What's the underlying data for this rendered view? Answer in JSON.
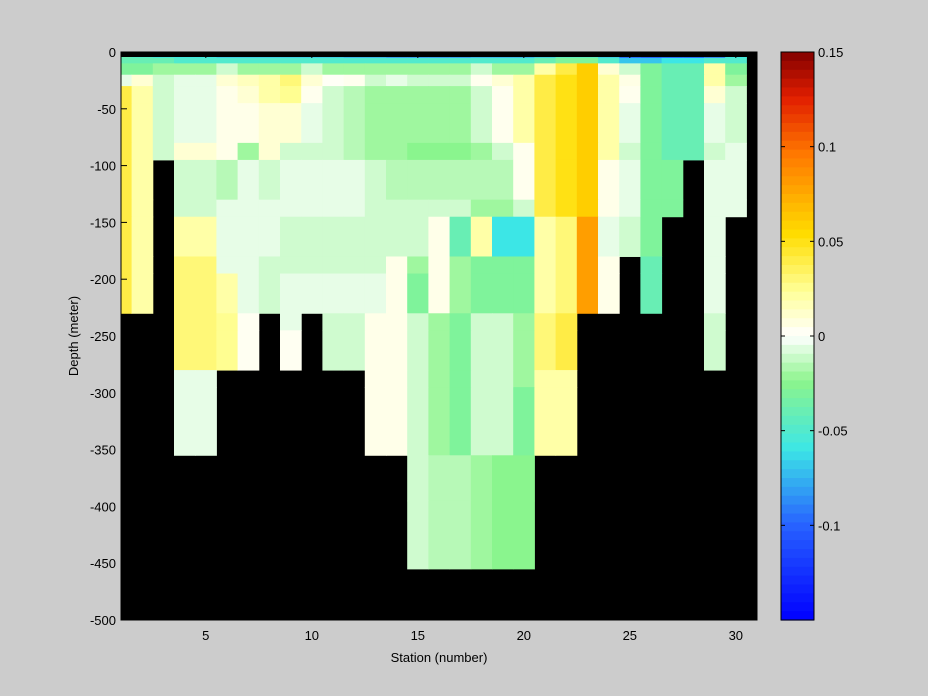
{
  "chart_data": {
    "type": "heatmap",
    "title": "",
    "xlabel": "Station (number)",
    "ylabel": "Depth (meter)",
    "xlim": [
      1,
      31
    ],
    "ylim": [
      -500,
      0
    ],
    "x_ticks": [
      5,
      10,
      15,
      20,
      25,
      30
    ],
    "y_ticks": [
      0,
      -50,
      -100,
      -150,
      -200,
      -250,
      -300,
      -350,
      -400,
      -450,
      -500
    ],
    "depth_bins": [
      -2.5,
      -7.5,
      -15,
      -25,
      -37.5,
      -62.5,
      -87.5,
      -112.5,
      -137.5,
      -162.5,
      -187.5,
      -212.5,
      -237.5,
      -262.5,
      -287.5,
      -325,
      -375,
      -425,
      -475
    ],
    "stations": [
      1,
      2,
      3,
      4,
      5,
      6,
      7,
      8,
      9,
      10,
      11,
      12,
      13,
      14,
      15,
      16,
      17,
      18,
      19,
      20,
      21,
      22,
      23,
      24,
      25,
      26,
      27,
      28,
      29,
      30
    ],
    "bottom_depth": [
      -200,
      -200,
      -100,
      -100,
      -300,
      -300,
      -250,
      -250,
      -200,
      -250,
      -200,
      -250,
      -250,
      -300,
      -300,
      -400,
      -400,
      -400,
      -400,
      -400,
      -400,
      -300,
      -300,
      -200,
      -150,
      -200,
      -125,
      -100,
      -250,
      -150
    ],
    "values": [
      [
        -0.04,
        -0.05,
        -0.06,
        -0.06,
        -0.06,
        -0.07,
        -0.07,
        -0.07,
        -0.07,
        -0.07,
        -0.07,
        -0.08,
        -0.08,
        -0.09,
        -0.09,
        -0.09,
        -0.09,
        -0.08,
        -0.08,
        -0.08,
        -0.07,
        -0.05,
        -0.05,
        -0.07,
        -0.11,
        -0.12,
        -0.12,
        -0.12,
        -0.1,
        -0.06
      ],
      [
        -0.04,
        -0.04,
        -0.04,
        -0.05,
        -0.05,
        -0.05,
        -0.05,
        -0.05,
        -0.05,
        -0.05,
        -0.05,
        -0.05,
        -0.05,
        -0.05,
        -0.05,
        -0.05,
        -0.05,
        -0.05,
        -0.05,
        -0.05,
        -0.04,
        -0.03,
        -0.03,
        -0.05,
        -0.07,
        -0.07,
        -0.06,
        -0.06,
        -0.05,
        -0.05
      ],
      [
        -0.03,
        -0.03,
        -0.02,
        -0.02,
        -0.02,
        -0.01,
        -0.02,
        -0.02,
        -0.02,
        -0.01,
        -0.02,
        -0.02,
        -0.02,
        -0.02,
        -0.02,
        -0.02,
        -0.02,
        -0.01,
        -0.02,
        -0.02,
        0.02,
        0.04,
        0.06,
        0.01,
        -0.01,
        -0.03,
        -0.04,
        -0.04,
        0.02,
        -0.03
      ],
      [
        -0.005,
        0.01,
        -0.01,
        -0.005,
        -0.005,
        0.01,
        0.015,
        0.02,
        0.03,
        0.01,
        0.002,
        0.004,
        -0.01,
        -0.005,
        -0.01,
        -0.01,
        -0.01,
        0.004,
        0.01,
        0.02,
        0.04,
        0.05,
        0.06,
        0.02,
        0.006,
        -0.03,
        -0.04,
        -0.04,
        0.02,
        -0.02
      ],
      [
        0.04,
        0.02,
        -0.01,
        -0.005,
        -0.005,
        0.005,
        0.01,
        0.02,
        0.025,
        0.004,
        -0.01,
        -0.015,
        -0.02,
        -0.02,
        -0.02,
        -0.02,
        -0.02,
        -0.01,
        0.004,
        0.02,
        0.04,
        0.05,
        0.06,
        0.02,
        0.004,
        -0.03,
        -0.04,
        -0.04,
        0.01,
        -0.01
      ],
      [
        0.04,
        0.02,
        -0.01,
        -0.005,
        -0.005,
        0.005,
        0.005,
        0.01,
        0.01,
        -0.005,
        -0.01,
        -0.015,
        -0.02,
        -0.02,
        -0.02,
        -0.02,
        -0.02,
        -0.01,
        0.004,
        0.02,
        0.04,
        0.05,
        0.06,
        0.02,
        -0.005,
        -0.03,
        -0.04,
        -0.04,
        -0.005,
        -0.01
      ],
      [
        0.04,
        0.02,
        -0.01,
        0.01,
        0.01,
        0.005,
        -0.02,
        0.01,
        -0.01,
        -0.01,
        -0.01,
        -0.015,
        -0.02,
        -0.02,
        -0.025,
        -0.025,
        -0.025,
        -0.02,
        -0.01,
        0.004,
        0.04,
        0.05,
        0.06,
        0.02,
        -0.01,
        -0.03,
        -0.04,
        -0.04,
        -0.01,
        -0.005
      ],
      [
        0.04,
        0.02,
        null,
        -0.01,
        -0.01,
        -0.015,
        -0.005,
        -0.01,
        -0.005,
        -0.005,
        -0.005,
        -0.005,
        -0.01,
        -0.015,
        -0.015,
        -0.015,
        -0.015,
        -0.015,
        -0.015,
        0.004,
        0.04,
        0.05,
        0.06,
        0.005,
        -0.005,
        -0.03,
        -0.03,
        null,
        -0.005,
        -0.005
      ],
      [
        0.04,
        0.02,
        null,
        -0.01,
        -0.01,
        -0.005,
        -0.005,
        -0.005,
        -0.005,
        -0.005,
        -0.005,
        -0.005,
        -0.01,
        -0.01,
        -0.01,
        -0.01,
        -0.01,
        -0.02,
        -0.02,
        -0.01,
        0.04,
        0.05,
        0.06,
        0.005,
        -0.005,
        -0.03,
        -0.03,
        null,
        -0.005,
        -0.005
      ],
      [
        0.04,
        0.02,
        null,
        0.02,
        0.02,
        -0.005,
        -0.005,
        -0.005,
        -0.01,
        -0.01,
        -0.01,
        -0.01,
        -0.01,
        -0.01,
        -0.01,
        0.005,
        -0.04,
        0.02,
        -0.06,
        -0.06,
        0.02,
        0.03,
        0.08,
        -0.005,
        -0.01,
        -0.03,
        null,
        null,
        -0.005,
        null
      ],
      [
        0.04,
        0.02,
        null,
        0.03,
        0.03,
        -0.005,
        -0.005,
        -0.01,
        -0.01,
        -0.01,
        -0.01,
        -0.01,
        -0.01,
        0.005,
        -0.02,
        0.005,
        -0.02,
        -0.03,
        -0.03,
        -0.03,
        0.02,
        0.03,
        0.08,
        0.005,
        null,
        -0.04,
        null,
        null,
        -0.005,
        null
      ],
      [
        0.04,
        0.02,
        null,
        0.03,
        0.03,
        0.02,
        -0.005,
        -0.01,
        -0.005,
        -0.005,
        -0.005,
        -0.005,
        -0.005,
        0.005,
        -0.03,
        0.005,
        -0.02,
        -0.03,
        -0.03,
        -0.03,
        0.02,
        0.03,
        0.08,
        0.005,
        null,
        -0.04,
        null,
        null,
        -0.005,
        null
      ],
      [
        null,
        null,
        null,
        0.03,
        0.03,
        0.025,
        0.003,
        null,
        -0.005,
        null,
        -0.01,
        -0.01,
        0.005,
        0.005,
        -0.01,
        -0.02,
        -0.03,
        -0.01,
        -0.01,
        -0.02,
        0.03,
        0.04,
        null,
        null,
        null,
        null,
        null,
        null,
        -0.01,
        null
      ],
      [
        null,
        null,
        null,
        0.03,
        0.03,
        0.025,
        0.003,
        null,
        0.003,
        null,
        -0.01,
        -0.01,
        0.005,
        0.005,
        -0.01,
        -0.02,
        -0.03,
        -0.01,
        -0.01,
        -0.02,
        0.03,
        0.04,
        null,
        null,
        null,
        null,
        null,
        null,
        -0.01,
        null
      ],
      [
        null,
        null,
        null,
        -0.005,
        -0.005,
        null,
        null,
        null,
        null,
        null,
        null,
        null,
        0.005,
        0.005,
        -0.01,
        -0.02,
        -0.03,
        -0.01,
        -0.01,
        -0.02,
        0.02,
        0.02,
        null,
        null,
        null,
        null,
        null,
        null,
        null,
        null
      ],
      [
        null,
        null,
        null,
        -0.005,
        -0.005,
        null,
        null,
        null,
        null,
        null,
        null,
        null,
        0.005,
        0.005,
        -0.01,
        -0.02,
        -0.03,
        -0.01,
        -0.01,
        -0.03,
        0.02,
        0.02,
        null,
        null,
        null,
        null,
        null,
        null,
        null,
        null
      ],
      [
        null,
        null,
        null,
        null,
        null,
        null,
        null,
        null,
        null,
        null,
        null,
        null,
        null,
        null,
        -0.01,
        -0.015,
        -0.015,
        -0.02,
        -0.025,
        -0.025,
        null,
        null,
        null,
        null,
        null,
        null,
        null,
        null,
        null,
        null
      ],
      [
        null,
        null,
        null,
        null,
        null,
        null,
        null,
        null,
        null,
        null,
        null,
        null,
        null,
        null,
        -0.01,
        -0.015,
        -0.015,
        -0.02,
        -0.025,
        -0.025,
        null,
        null,
        null,
        null,
        null,
        null,
        null,
        null,
        null,
        null
      ],
      [
        null,
        null,
        null,
        null,
        null,
        null,
        null,
        null,
        null,
        null,
        null,
        null,
        null,
        null,
        null,
        null,
        null,
        null,
        null,
        null,
        null,
        null,
        null,
        null,
        null,
        null,
        null,
        null,
        null,
        null
      ]
    ],
    "colorbar": {
      "range": [
        -0.15,
        0.15
      ],
      "ticks": [
        0.15,
        0.1,
        0.05,
        0,
        -0.05,
        -0.1
      ],
      "tick_labels": [
        "0.15",
        "0.1",
        "0.05",
        "0",
        "-0.05",
        "-0.1"
      ],
      "colormap": "jet-white-center"
    },
    "no_data_color": "#000000",
    "background_color": "#cccccc"
  }
}
